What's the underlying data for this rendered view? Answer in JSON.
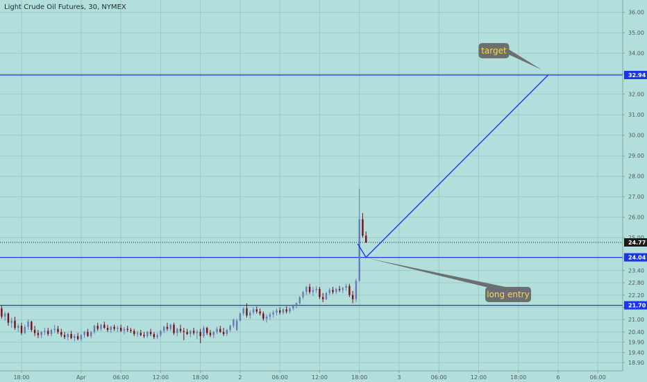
{
  "header": {
    "title": "Light Crude Oil Futures, 30, NYMEX"
  },
  "colors": {
    "background": "#b2dfdb",
    "grid": "#9ccac5",
    "level_line": "#1a36e8",
    "candle_up": "#6a78b8",
    "candle_down": "#7a0c18",
    "current_badge": "#1b1b1b",
    "level_badge": "#1a36e8",
    "callout_fill": "#6b6f70"
  },
  "chart_data": {
    "type": "candlestick",
    "y_axis": {
      "ticks": [
        "18.90",
        "19.40",
        "19.90",
        "20.40",
        "21.00",
        "21.60",
        "22.20",
        "22.80",
        "23.40",
        "24.00",
        "25.00",
        "26.00",
        "27.00",
        "28.00",
        "29.00",
        "30.00",
        "31.00",
        "32.00",
        "33.00",
        "34.00",
        "35.00",
        "36.00"
      ],
      "tick_values": [
        18.9,
        19.4,
        19.9,
        20.4,
        21.0,
        21.6,
        22.2,
        22.8,
        23.4,
        24.0,
        25.0,
        26.0,
        27.0,
        28.0,
        29.0,
        30.0,
        31.0,
        32.0,
        33.0,
        34.0,
        35.0,
        36.0
      ],
      "range": [
        18.5,
        36.6
      ]
    },
    "x_axis": {
      "ticks": [
        "18:00",
        "Apr",
        "06:00",
        "12:00",
        "18:00",
        "2",
        "06:00",
        "12:00",
        "18:00",
        "3",
        "06:00",
        "12:00",
        "18:00",
        "6",
        "06:00"
      ],
      "tick_positions": [
        6,
        24,
        36,
        48,
        60,
        72,
        84,
        96,
        108,
        120,
        132,
        144,
        156,
        168,
        180
      ],
      "range": [
        -0.5,
        187.5
      ]
    },
    "price_levels": [
      {
        "label": "32.94",
        "value": 32.94
      },
      {
        "label": "24.04",
        "value": 24.04
      },
      {
        "label": "21.70",
        "value": 21.7
      }
    ],
    "current_price": {
      "label": "24.77",
      "value": 24.77
    },
    "projection": [
      {
        "x": 107.5,
        "y": 24.7
      },
      {
        "x": 110,
        "y": 24.04
      },
      {
        "x": 165,
        "y": 32.94
      }
    ],
    "annotations": [
      {
        "text": "target",
        "anchor_x": 163,
        "anchor_y": 33.2,
        "box_x": 144,
        "box_y": 34.5
      },
      {
        "text": "long entry",
        "anchor_x": 110.5,
        "anchor_y": 24.0,
        "box_x": 146,
        "box_y": 22.6
      }
    ],
    "candles": [
      [
        21.55,
        21.68,
        21.05,
        21.15
      ],
      [
        21.15,
        21.4,
        20.95,
        21.3
      ],
      [
        21.3,
        21.35,
        20.7,
        20.85
      ],
      [
        20.85,
        21.1,
        20.6,
        20.95
      ],
      [
        20.95,
        21.15,
        20.5,
        20.6
      ],
      [
        20.6,
        20.8,
        20.4,
        20.7
      ],
      [
        20.7,
        20.85,
        20.25,
        20.35
      ],
      [
        20.35,
        20.75,
        20.3,
        20.65
      ],
      [
        20.65,
        21.0,
        20.5,
        20.9
      ],
      [
        20.9,
        20.95,
        20.4,
        20.5
      ],
      [
        20.5,
        20.7,
        20.2,
        20.35
      ],
      [
        20.35,
        20.5,
        20.1,
        20.25
      ],
      [
        20.25,
        20.45,
        20.1,
        20.4
      ],
      [
        20.4,
        20.6,
        20.25,
        20.45
      ],
      [
        20.45,
        20.6,
        20.2,
        20.3
      ],
      [
        20.3,
        20.55,
        20.2,
        20.5
      ],
      [
        20.5,
        20.75,
        20.35,
        20.55
      ],
      [
        20.55,
        20.7,
        20.3,
        20.4
      ],
      [
        20.4,
        20.55,
        20.15,
        20.25
      ],
      [
        20.25,
        20.4,
        20.05,
        20.15
      ],
      [
        20.15,
        20.35,
        20.0,
        20.3
      ],
      [
        20.3,
        20.45,
        20.05,
        20.1
      ],
      [
        20.1,
        20.3,
        19.95,
        20.2
      ],
      [
        20.2,
        20.35,
        20.0,
        20.05
      ],
      [
        20.05,
        20.3,
        19.95,
        20.25
      ],
      [
        20.25,
        20.45,
        20.1,
        20.4
      ],
      [
        20.4,
        20.55,
        20.15,
        20.2
      ],
      [
        20.2,
        20.45,
        20.1,
        20.4
      ],
      [
        20.4,
        20.75,
        20.3,
        20.7
      ],
      [
        20.7,
        20.85,
        20.45,
        20.55
      ],
      [
        20.55,
        20.8,
        20.45,
        20.75
      ],
      [
        20.75,
        20.9,
        20.55,
        20.6
      ],
      [
        20.6,
        20.75,
        20.4,
        20.5
      ],
      [
        20.5,
        20.7,
        20.35,
        20.65
      ],
      [
        20.65,
        20.75,
        20.45,
        20.55
      ],
      [
        20.55,
        20.7,
        20.4,
        20.6
      ],
      [
        20.6,
        20.75,
        20.4,
        20.45
      ],
      [
        20.45,
        20.65,
        20.3,
        20.55
      ],
      [
        20.55,
        20.7,
        20.4,
        20.5
      ],
      [
        20.5,
        20.6,
        20.35,
        20.45
      ],
      [
        20.45,
        20.55,
        20.2,
        20.3
      ],
      [
        20.3,
        20.45,
        20.15,
        20.35
      ],
      [
        20.35,
        20.5,
        20.2,
        20.25
      ],
      [
        20.25,
        20.4,
        20.1,
        20.2
      ],
      [
        20.2,
        20.45,
        20.1,
        20.4
      ],
      [
        20.4,
        20.55,
        20.2,
        20.3
      ],
      [
        20.3,
        20.4,
        20.05,
        20.15
      ],
      [
        20.15,
        20.35,
        20.05,
        20.25
      ],
      [
        20.25,
        20.5,
        20.15,
        20.45
      ],
      [
        20.45,
        20.7,
        20.35,
        20.65
      ],
      [
        20.65,
        20.85,
        20.45,
        20.55
      ],
      [
        20.55,
        20.8,
        20.45,
        20.75
      ],
      [
        20.75,
        20.85,
        20.25,
        20.35
      ],
      [
        20.35,
        20.6,
        20.2,
        20.55
      ],
      [
        20.55,
        20.75,
        20.35,
        20.45
      ],
      [
        20.45,
        20.6,
        20.0,
        20.4
      ],
      [
        20.4,
        20.55,
        20.25,
        20.3
      ],
      [
        20.3,
        20.5,
        20.15,
        20.45
      ],
      [
        20.45,
        20.6,
        20.25,
        20.35
      ],
      [
        20.35,
        20.5,
        20.05,
        20.4
      ],
      [
        20.4,
        20.55,
        19.85,
        20.2
      ],
      [
        20.2,
        20.7,
        20.1,
        20.6
      ],
      [
        20.6,
        20.65,
        20.25,
        20.35
      ],
      [
        20.35,
        20.5,
        20.15,
        20.25
      ],
      [
        20.25,
        20.45,
        20.1,
        20.4
      ],
      [
        20.4,
        20.65,
        20.3,
        20.55
      ],
      [
        20.55,
        20.7,
        20.35,
        20.4
      ],
      [
        20.4,
        20.6,
        20.2,
        20.3
      ],
      [
        20.3,
        20.55,
        20.2,
        20.5
      ],
      [
        20.5,
        20.75,
        20.4,
        20.7
      ],
      [
        20.7,
        21.05,
        20.6,
        21.0
      ],
      [
        20.5,
        21.05,
        20.45,
        20.95
      ],
      [
        20.95,
        21.35,
        20.9,
        21.3
      ],
      [
        21.3,
        21.6,
        21.2,
        21.55
      ],
      [
        21.55,
        21.8,
        21.1,
        21.2
      ],
      [
        21.2,
        21.45,
        21.05,
        21.35
      ],
      [
        21.35,
        21.6,
        21.25,
        21.5
      ],
      [
        21.5,
        21.65,
        21.3,
        21.4
      ],
      [
        21.4,
        21.55,
        21.2,
        21.3
      ],
      [
        21.3,
        21.4,
        20.95,
        21.05
      ],
      [
        21.05,
        21.25,
        20.85,
        21.15
      ],
      [
        21.15,
        21.35,
        21.0,
        21.25
      ],
      [
        21.25,
        21.45,
        21.1,
        21.35
      ],
      [
        21.35,
        21.55,
        21.2,
        21.45
      ],
      [
        21.45,
        21.6,
        21.25,
        21.35
      ],
      [
        21.35,
        21.55,
        21.25,
        21.5
      ],
      [
        21.5,
        21.65,
        21.3,
        21.4
      ],
      [
        21.4,
        21.6,
        21.3,
        21.55
      ],
      [
        21.55,
        21.75,
        21.45,
        21.7
      ],
      [
        21.7,
        21.85,
        21.55,
        21.8
      ],
      [
        21.8,
        22.15,
        21.75,
        22.1
      ],
      [
        22.1,
        22.4,
        22.0,
        22.35
      ],
      [
        22.35,
        22.65,
        22.2,
        22.6
      ],
      [
        22.6,
        22.75,
        22.25,
        22.35
      ],
      [
        22.35,
        22.6,
        22.15,
        22.45
      ],
      [
        22.45,
        22.65,
        22.3,
        22.5
      ],
      [
        22.5,
        22.6,
        22.0,
        22.1
      ],
      [
        22.1,
        22.3,
        21.85,
        22.0
      ],
      [
        22.0,
        22.35,
        21.95,
        22.3
      ],
      [
        22.3,
        22.55,
        22.2,
        22.45
      ],
      [
        22.45,
        22.6,
        22.25,
        22.35
      ],
      [
        22.35,
        22.55,
        22.25,
        22.5
      ],
      [
        22.5,
        22.65,
        22.35,
        22.45
      ],
      [
        22.45,
        22.6,
        22.3,
        22.55
      ],
      [
        22.55,
        22.75,
        22.4,
        22.65
      ],
      [
        22.65,
        22.75,
        22.1,
        22.2
      ],
      [
        22.2,
        22.4,
        21.8,
        22.0
      ],
      [
        22.0,
        23.0,
        21.85,
        22.9
      ],
      [
        22.9,
        27.4,
        22.85,
        25.9
      ],
      [
        25.9,
        26.2,
        25.0,
        25.1
      ],
      [
        25.1,
        25.3,
        24.75,
        24.77
      ]
    ]
  }
}
